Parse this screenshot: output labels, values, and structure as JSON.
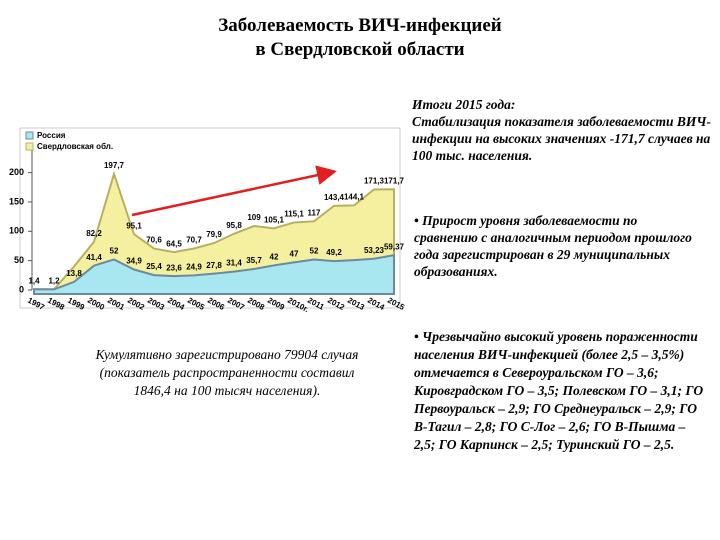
{
  "title": [
    "Заболеваемость ВИЧ-инфекцией",
    "в Свердловской области"
  ],
  "summary_heading": "Итоги 2015 года:",
  "summary": "Стабилизация показателя заболеваемости ВИЧ-инфекции на высоких значениях -171,7 случаев на 100 тыс. населения.",
  "growth": "• Прирост уровня заболеваемости по сравнению с аналогичным периодом прошлого года зарегистрирован в 29 муниципальных образованиях.",
  "prevalence": "• Чрезвычайно высокий уровень пораженности населения ВИЧ-инфекцией (более 2,5 – 3,5%) отмечается в Североуральском ГО – 3,6; Кировградском ГО – 3,5; Полевском ГО – 3,1; ГО Первоуральск – 2,9; ГО Среднеуральск – 2,9; ГО В-Тагил – 2,8; ГО С-Лог – 2,6; ГО В-Пышма – 2,5; ГО Карпинск – 2,5; Туринский ГО – 2,5.",
  "cumulative": "Кумулятивно зарегистрировано 79904 случая (показатель распространенности составил 1846,4 на 100 тысяч населения).",
  "chart_data": {
    "type": "area",
    "categories": [
      "1997",
      "1998",
      "1999",
      "2000",
      "2001",
      "2002",
      "2003",
      "2004",
      "2005",
      "2006",
      "2007",
      "2008",
      "2009",
      "2010г.",
      "2011",
      "2012",
      "2013",
      "2014",
      "2015"
    ],
    "series": [
      {
        "name": "Свердловская обл.",
        "color": "#f4f0a0",
        "edge": "#b8b060",
        "values": [
          1.4,
          1.2,
          40,
          82.2,
          197.7,
          95.1,
          70.6,
          64.5,
          70.7,
          79.9,
          95.8,
          109,
          105.1,
          115.1,
          117,
          143.4,
          144.1,
          171.3,
          171.7
        ],
        "value_labels": [
          "1,4",
          "1,2",
          null,
          "82,2",
          "197,7",
          "95,1",
          "70,6",
          "64,5",
          "70,7",
          "79,9",
          "95,8",
          "109",
          "105,1",
          "115,1",
          "117",
          "143,4",
          "144,1",
          "171,3",
          "171,7"
        ]
      },
      {
        "name": "Россия",
        "color": "#a8e6f0",
        "edge": "#6a8aa0",
        "values": [
          1,
          1,
          13.8,
          41.4,
          52,
          34.9,
          25.4,
          23.6,
          24.9,
          27.8,
          31.4,
          35.7,
          42,
          47,
          52,
          49.2,
          51,
          53.23,
          59.37
        ],
        "value_labels": [
          null,
          null,
          "13,8",
          "41,4",
          "52",
          "34,9",
          "25,4",
          "23,6",
          "24,9",
          "27,8",
          "31,4",
          "35,7",
          "42",
          "47",
          "52",
          "49,2",
          null,
          "53,23",
          "59,37"
        ]
      }
    ],
    "ylim": [
      0,
      230
    ],
    "yticks": [
      0,
      50,
      100,
      150,
      200
    ],
    "legend": "top-left"
  }
}
